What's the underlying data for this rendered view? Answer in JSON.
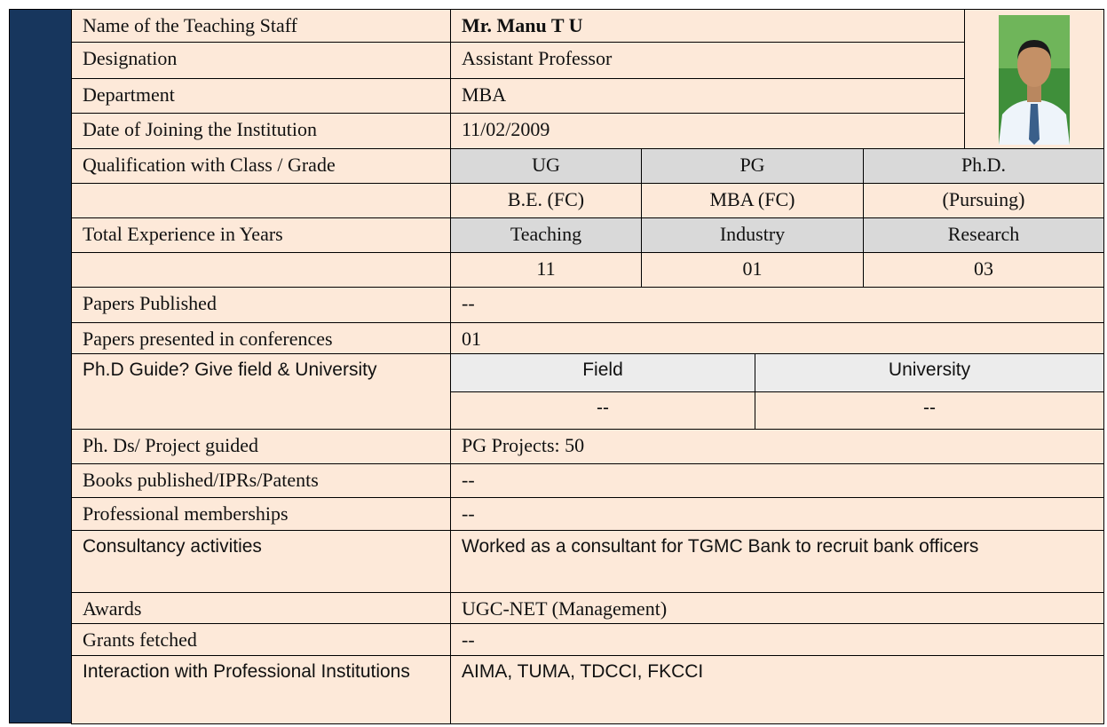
{
  "rows": [
    {
      "label": "Name of the Teaching Staff",
      "value": "Mr. Manu T U"
    },
    {
      "label": "Designation",
      "value": "Assistant Professor"
    },
    {
      "label": "Department",
      "value": "MBA"
    },
    {
      "label": "Date of Joining the Institution",
      "value": "11/02/2009"
    },
    {
      "label": "Qualification with Class / Grade",
      "columns": [
        "UG",
        "PG",
        "Ph.D."
      ],
      "values": [
        "B.E. (FC)",
        "MBA (FC)",
        "(Pursuing)"
      ]
    },
    {
      "label": "Total Experience in Years",
      "columns": [
        "Teaching",
        "Industry",
        "Research"
      ],
      "values": [
        "11",
        "01",
        "03"
      ]
    },
    {
      "label": "Papers Published",
      "value": "--"
    },
    {
      "label": "Papers presented in conferences",
      "value": "01"
    },
    {
      "label": "Ph.D Guide? Give field & University",
      "columns": [
        "Field",
        "University"
      ],
      "values": [
        "--",
        "--"
      ]
    },
    {
      "label": "Ph. Ds/ Project guided",
      "value": "PG Projects: 50"
    },
    {
      "label": "Books published/IPRs/Patents",
      "value": "--"
    },
    {
      "label": "Professional memberships",
      "value": "--"
    },
    {
      "label": "Consultancy activities",
      "value": "Worked as a consultant for TGMC Bank to recruit bank officers"
    },
    {
      "label": "Awards",
      "value": "UGC-NET (Management)"
    },
    {
      "label": "Grants fetched",
      "value": "--"
    },
    {
      "label": "Interaction with Professional Institutions",
      "value": "AIMA, TUMA, TDCCI, FKCCI"
    }
  ]
}
